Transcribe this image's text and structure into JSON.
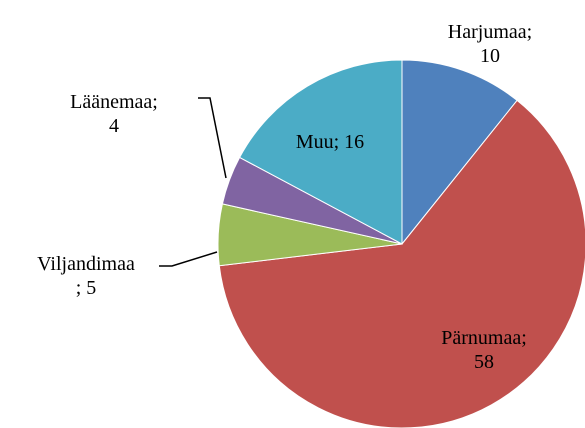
{
  "chart_data": {
    "type": "pie",
    "categories": [
      "Harjumaa",
      "Pärnumaa",
      "Viljandimaa",
      "Läänemaa",
      "Muu"
    ],
    "values": [
      10,
      58,
      5,
      4,
      16
    ],
    "value_labels": [
      "Harjumaa;\n10",
      "Pärnumaa;\n58",
      "Viljandimaa\n; 5",
      "Läänemaa;\n4",
      "Muu; 16"
    ],
    "colors": [
      "#4f81bd",
      "#c0504d",
      "#9bbb59",
      "#8064a2",
      "#4bacc6"
    ]
  }
}
